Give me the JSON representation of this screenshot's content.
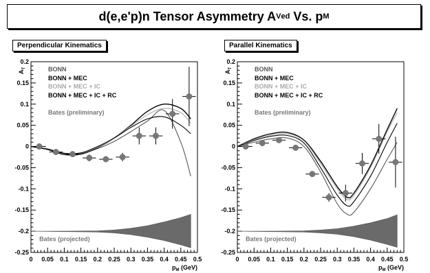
{
  "title": {
    "prefix": "d(e,e'p)n Tensor Asymmetry A",
    "sup": "V",
    "sub": "ed",
    "middle": " Vs. p",
    "sub2": "M"
  },
  "chart_data": [
    {
      "type": "line",
      "panel_label": "Perpendicular Kinematics",
      "xlabel": "p_M (GeV)",
      "ylabel": "A_T",
      "xlim": [
        0,
        0.5
      ],
      "ylim": [
        -0.25,
        0.2
      ],
      "x_ticks": [
        "0",
        "0.05",
        "0.1",
        "0.15",
        "0.2",
        "0.25",
        "0.3",
        "0.35",
        "0.4",
        "0.45",
        "0.5"
      ],
      "y_ticks": [
        "0.2",
        "0.15",
        "0.1",
        "0.05",
        "0",
        "-0.05",
        "-0.1",
        "-0.15",
        "-0.2",
        "-0.25"
      ],
      "legend_position": "top-left",
      "legend": [
        {
          "name": "BONN",
          "color": "#555555"
        },
        {
          "name": "BONN + MEC",
          "color": "#000000"
        },
        {
          "name": "BONN + MEC + IC",
          "color": "#aaaaaa"
        },
        {
          "name": "BONN + MEC + IC + RC",
          "color": "#000000"
        },
        {
          "name": "Bates (preliminary)",
          "color": "#777777"
        }
      ],
      "series": [
        {
          "name": "BONN",
          "color": "#555555",
          "x": [
            0,
            0.05,
            0.1,
            0.15,
            0.2,
            0.25,
            0.3,
            0.35,
            0.4,
            0.45,
            0.48
          ],
          "y": [
            0,
            -0.006,
            -0.016,
            -0.017,
            -0.005,
            0.012,
            0.035,
            0.06,
            0.085,
            0.01,
            -0.07
          ]
        },
        {
          "name": "BONN + MEC",
          "color": "#000000",
          "x": [
            0,
            0.05,
            0.1,
            0.15,
            0.2,
            0.25,
            0.3,
            0.35,
            0.4,
            0.45,
            0.48
          ],
          "y": [
            0,
            -0.007,
            -0.019,
            -0.018,
            -0.003,
            0.02,
            0.05,
            0.083,
            0.1,
            0.09,
            0.065
          ]
        },
        {
          "name": "BONN + MEC + IC",
          "color": "#aaaaaa",
          "x": [
            0,
            0.05,
            0.1,
            0.15,
            0.2,
            0.25,
            0.3,
            0.35,
            0.4,
            0.45,
            0.48
          ],
          "y": [
            0,
            -0.006,
            -0.017,
            -0.016,
            -0.002,
            0.02,
            0.048,
            0.075,
            0.09,
            0.08,
            0.055
          ]
        },
        {
          "name": "BONN + MEC + IC + RC",
          "color": "#000000",
          "x": [
            0,
            0.05,
            0.1,
            0.15,
            0.2,
            0.25,
            0.3,
            0.35,
            0.4,
            0.45,
            0.48
          ],
          "y": [
            0,
            -0.006,
            -0.016,
            -0.015,
            0,
            0.02,
            0.045,
            0.065,
            0.07,
            0.05,
            0.03
          ]
        }
      ],
      "data_points": {
        "name": "Bates (preliminary)",
        "x": [
          0.025,
          0.075,
          0.125,
          0.175,
          0.225,
          0.275,
          0.325,
          0.375,
          0.425,
          0.475
        ],
        "y": [
          0,
          -0.013,
          -0.018,
          -0.027,
          -0.03,
          -0.025,
          0.025,
          0.025,
          0.077,
          0.118
        ],
        "yerr": [
          0.004,
          0.006,
          0.005,
          0.008,
          0.004,
          0.01,
          0.02,
          0.02,
          0.035,
          0.07
        ],
        "xerr": 0.02
      },
      "band": {
        "name": "Bates (projected)",
        "x": [
          0,
          0.1,
          0.2,
          0.25,
          0.3,
          0.35,
          0.4,
          0.45,
          0.48
        ],
        "upper": [
          -0.2,
          -0.2,
          -0.199,
          -0.197,
          -0.193,
          -0.187,
          -0.178,
          -0.168,
          -0.16
        ],
        "lower": [
          -0.2,
          -0.201,
          -0.202,
          -0.204,
          -0.208,
          -0.214,
          -0.222,
          -0.232,
          -0.239
        ]
      }
    },
    {
      "type": "line",
      "panel_label": "Parallel Kinematics",
      "xlabel": "p_M (GeV)",
      "ylabel": "A_T",
      "xlim": [
        0,
        0.5
      ],
      "ylim": [
        -0.25,
        0.2
      ],
      "x_ticks": [
        "0",
        "0.05",
        "0.1",
        "0.15",
        "0.2",
        "0.25",
        "0.3",
        "0.35",
        "0.4",
        "0.45",
        "0.5"
      ],
      "y_ticks": [
        "0.2",
        "0.15",
        "0.1",
        "0.05",
        "0",
        "-0.05",
        "-0.1",
        "-0.15",
        "-0.2",
        "-0.25"
      ],
      "legend_position": "top-left",
      "legend": [
        {
          "name": "BONN",
          "color": "#555555"
        },
        {
          "name": "BONN + MEC",
          "color": "#000000"
        },
        {
          "name": "BONN + MEC + IC",
          "color": "#aaaaaa"
        },
        {
          "name": "BONN + MEC + IC + RC",
          "color": "#000000"
        },
        {
          "name": "Bates (preliminary)",
          "color": "#777777"
        }
      ],
      "series": [
        {
          "name": "BONN",
          "color": "#555555",
          "x": [
            0,
            0.05,
            0.1,
            0.15,
            0.2,
            0.25,
            0.3,
            0.33,
            0.35,
            0.4,
            0.45,
            0.48
          ],
          "y": [
            0,
            0.01,
            0.018,
            0.02,
            0,
            -0.06,
            -0.135,
            -0.16,
            -0.155,
            -0.1,
            -0.03,
            0.01
          ]
        },
        {
          "name": "BONN + MEC",
          "color": "#000000",
          "x": [
            0,
            0.05,
            0.1,
            0.15,
            0.2,
            0.25,
            0.3,
            0.33,
            0.35,
            0.4,
            0.45,
            0.48
          ],
          "y": [
            0,
            0.018,
            0.03,
            0.033,
            0.015,
            -0.035,
            -0.095,
            -0.12,
            -0.11,
            -0.045,
            0.04,
            0.09
          ]
        },
        {
          "name": "BONN + MEC + IC",
          "color": "#aaaaaa",
          "x": [
            0,
            0.05,
            0.1,
            0.15,
            0.2,
            0.25,
            0.3,
            0.33,
            0.35,
            0.4,
            0.45,
            0.48
          ],
          "y": [
            0,
            0.016,
            0.027,
            0.03,
            0.013,
            -0.04,
            -0.1,
            -0.125,
            -0.115,
            -0.05,
            0.035,
            0.08
          ]
        },
        {
          "name": "BONN + MEC + IC + RC",
          "color": "#000000",
          "x": [
            0,
            0.05,
            0.1,
            0.15,
            0.2,
            0.25,
            0.3,
            0.33,
            0.35,
            0.4,
            0.45,
            0.48
          ],
          "y": [
            0,
            0.014,
            0.024,
            0.026,
            0.008,
            -0.05,
            -0.115,
            -0.14,
            -0.13,
            -0.07,
            0.01,
            0.055
          ]
        }
      ],
      "data_points": {
        "name": "Bates (preliminary)",
        "x": [
          0.025,
          0.075,
          0.125,
          0.175,
          0.225,
          0.275,
          0.325,
          0.375,
          0.425,
          0.475
        ],
        "y": [
          0,
          0.008,
          0.015,
          -0.003,
          -0.065,
          -0.12,
          -0.11,
          -0.04,
          0.018,
          -0.037
        ],
        "yerr": [
          0.004,
          0.005,
          0.005,
          0.006,
          0.006,
          0.01,
          0.02,
          0.025,
          0.035,
          0.06
        ],
        "xerr": 0.02
      },
      "band": {
        "name": "Bates (projected)",
        "x": [
          0,
          0.1,
          0.2,
          0.25,
          0.3,
          0.35,
          0.4,
          0.45,
          0.48
        ],
        "upper": [
          -0.2,
          -0.2,
          -0.199,
          -0.197,
          -0.194,
          -0.188,
          -0.18,
          -0.17,
          -0.161
        ],
        "lower": [
          -0.2,
          -0.201,
          -0.202,
          -0.204,
          -0.207,
          -0.213,
          -0.221,
          -0.231,
          -0.238
        ]
      }
    }
  ]
}
